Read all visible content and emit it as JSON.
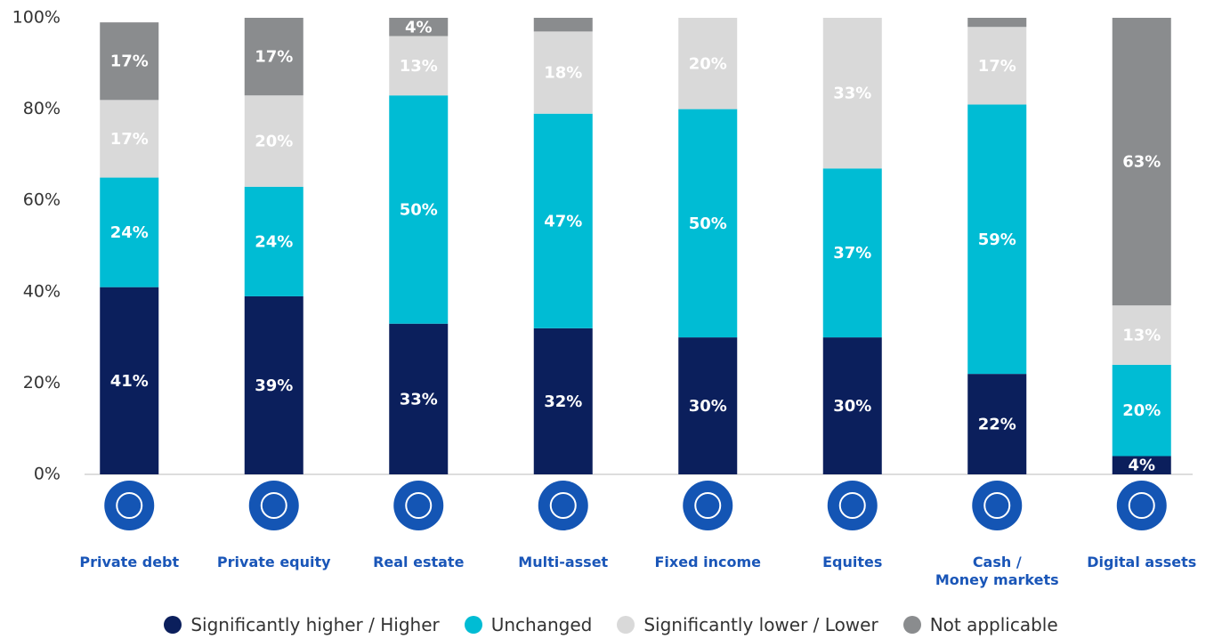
{
  "chart_data": {
    "type": "stacked_bar",
    "categories": [
      "Private debt",
      "Private equity",
      "Real estate",
      "Multi-asset",
      "Fixed income",
      "Equites",
      "Cash /\nMoney markets",
      "Digital assets"
    ],
    "series": [
      {
        "name": "Significantly higher / Higher",
        "color": "#0b1f5c",
        "values": [
          41,
          39,
          33,
          32,
          30,
          30,
          22,
          4
        ],
        "value_labels": [
          "41%",
          "39%",
          "33%",
          "32%",
          "30%",
          "30%",
          "22%",
          "4%"
        ]
      },
      {
        "name": "Unchanged",
        "color": "#00bcd4",
        "values": [
          24,
          24,
          50,
          47,
          50,
          37,
          59,
          20
        ],
        "value_labels": [
          "24%",
          "24%",
          "50%",
          "47%",
          "50%",
          "37%",
          "59%",
          "20%"
        ]
      },
      {
        "name": "Significantly lower / Lower",
        "color": "#d9d9d9",
        "values": [
          17,
          20,
          13,
          18,
          20,
          33,
          17,
          13
        ],
        "value_labels": [
          "17%",
          "20%",
          "13%",
          "18%",
          "20%",
          "33%",
          "17%",
          "13%"
        ]
      },
      {
        "name": "Not applicable",
        "color": "#8a8c8e",
        "values": [
          17,
          17,
          4,
          3,
          0,
          0,
          2,
          63
        ],
        "value_labels": [
          "17%",
          "17%",
          "4%",
          null,
          null,
          null,
          null,
          "63%"
        ]
      }
    ],
    "ylim": [
      0,
      100
    ],
    "yticks": [
      {
        "value": 0,
        "label": "0%"
      },
      {
        "value": 20,
        "label": "20%"
      },
      {
        "value": 40,
        "label": "40%"
      },
      {
        "value": 60,
        "label": "60%"
      },
      {
        "value": 80,
        "label": "80%"
      },
      {
        "value": 100,
        "label": "100%"
      }
    ]
  }
}
